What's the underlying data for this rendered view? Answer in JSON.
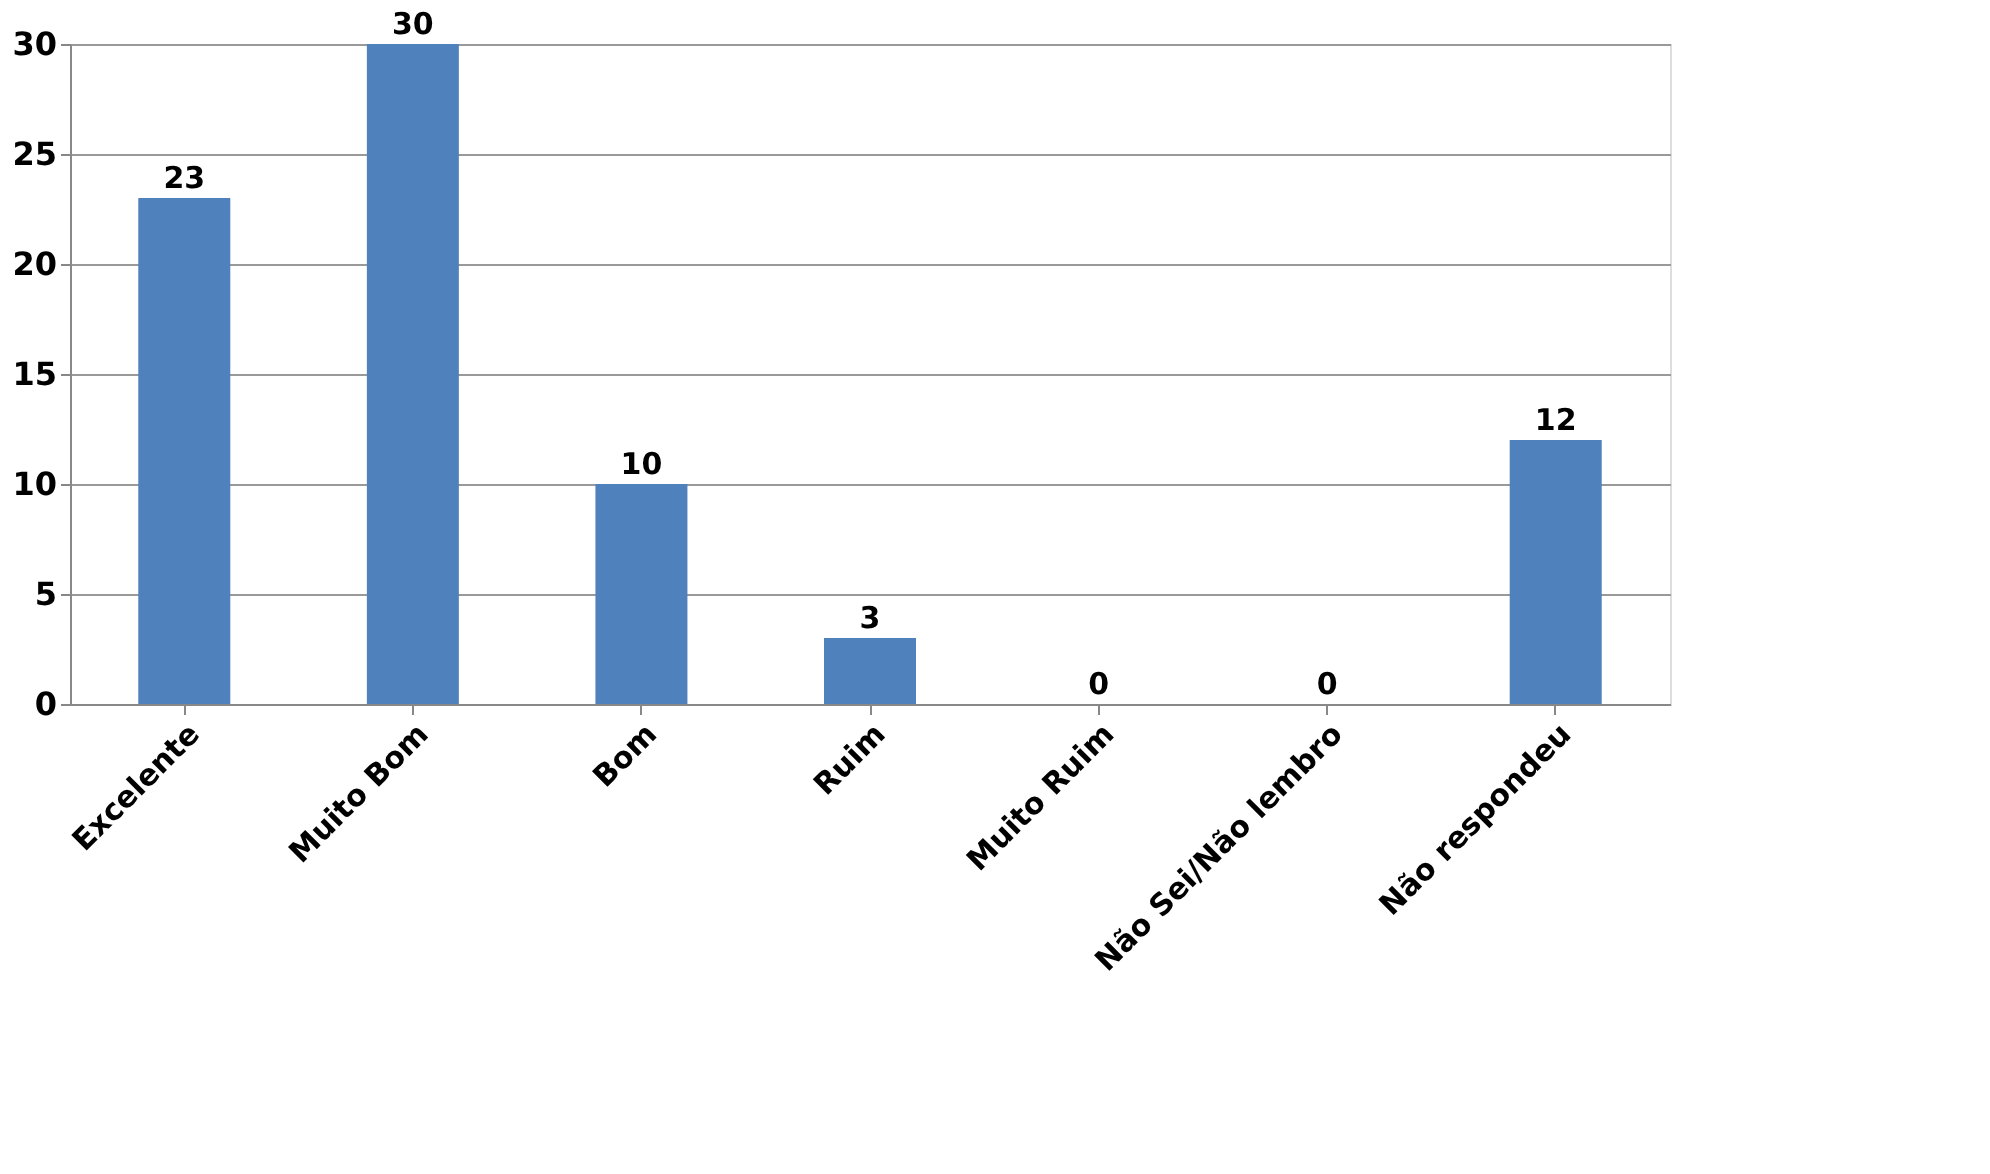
{
  "chart_data": {
    "type": "bar",
    "categories": [
      "Excelente",
      "Muito Bom",
      "Bom",
      "Ruim",
      "Muito Ruim",
      "Não Sei/Não lembro",
      "Não respondeu"
    ],
    "values": [
      23,
      30,
      10,
      3,
      0,
      0,
      12
    ],
    "color": "#4f81bd",
    "ylim": [
      0,
      30
    ],
    "yticks": [
      0,
      5,
      10,
      15,
      20,
      25,
      30
    ],
    "grid": "y",
    "data_labels": true
  }
}
